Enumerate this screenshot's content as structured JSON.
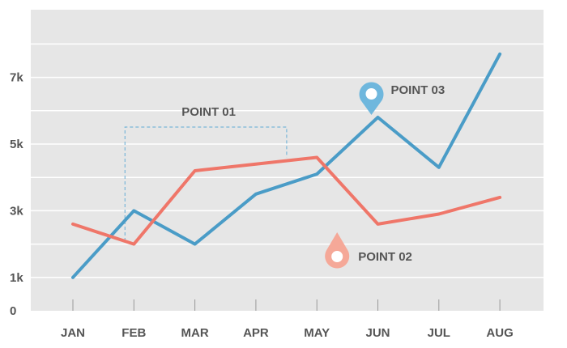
{
  "chart_data": {
    "type": "line",
    "categories": [
      "JAN",
      "FEB",
      "MAR",
      "APR",
      "MAY",
      "JUN",
      "JUL",
      "AUG"
    ],
    "yticks": [
      {
        "value": 0,
        "label": "0"
      },
      {
        "value": 1000,
        "label": "1k"
      },
      {
        "value": 3000,
        "label": "3k"
      },
      {
        "value": 5000,
        "label": "5k"
      },
      {
        "value": 7000,
        "label": "7k"
      }
    ],
    "ylim": [
      0,
      8000
    ],
    "grid": true,
    "series": [
      {
        "color": "#4a9cc7",
        "x": [
          "JAN",
          "FEB",
          "MAR",
          "APR",
          "MAY",
          "JUN",
          "JUL",
          "AUG"
        ],
        "values": [
          1000,
          3000,
          2000,
          3500,
          4100,
          5800,
          4300,
          7700
        ]
      },
      {
        "color": "#ef7669",
        "x": [
          "JAN",
          "FEB",
          "MAR",
          "APR",
          "MAY",
          "JUN",
          "JUL",
          "AUG"
        ],
        "values": [
          2600,
          2000,
          4200,
          4400,
          4600,
          2600,
          2900,
          3400
        ]
      }
    ],
    "annotations": [
      {
        "label": "POINT 01",
        "type": "bracket"
      },
      {
        "label": "POINT 02",
        "type": "pin",
        "color": "#f5a898",
        "icon": "map-pin-icon"
      },
      {
        "label": "POINT 03",
        "type": "pin",
        "color": "#6fb7dd",
        "icon": "map-pin-icon"
      }
    ],
    "colors": {
      "plot_bg": "#e6e6e6",
      "grid": "#ffffff",
      "axis_text": "#555555",
      "bracket": "#7ab6d8"
    }
  }
}
